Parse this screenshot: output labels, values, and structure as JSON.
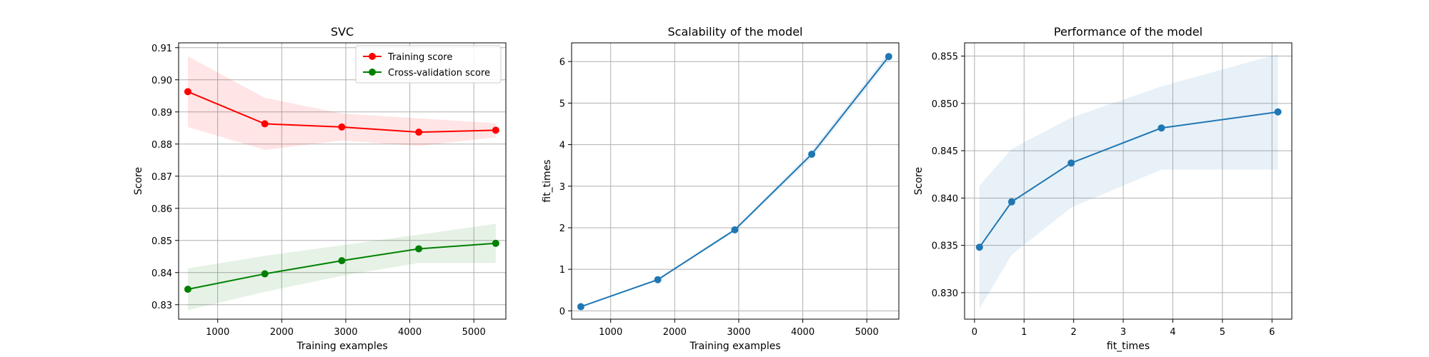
{
  "chart_data": [
    {
      "type": "line",
      "title": "SVC",
      "xlabel": "Training examples",
      "ylabel": "Score",
      "xlim": [
        390,
        5500
      ],
      "ylim": [
        0.8255,
        0.9115
      ],
      "xticks": [
        1000,
        2000,
        3000,
        4000,
        5000
      ],
      "yticks": [
        0.83,
        0.84,
        0.85,
        0.86,
        0.87,
        0.88,
        0.89,
        0.9,
        0.91
      ],
      "ytick_decimals": 2,
      "grid": true,
      "legend": "top-right",
      "series": [
        {
          "name": "Training score",
          "color": "#ff0000",
          "band_color": "#ff0000",
          "x": [
            534,
            1736,
            2938,
            4140,
            5342
          ],
          "y": [
            0.8963,
            0.8863,
            0.8853,
            0.8837,
            0.8843
          ],
          "lower": [
            0.8853,
            0.8782,
            0.8811,
            0.8794,
            0.8821
          ],
          "upper": [
            0.9073,
            0.8944,
            0.8895,
            0.888,
            0.8865
          ]
        },
        {
          "name": "Cross-validation score",
          "color": "#008000",
          "band_color": "#008000",
          "x": [
            534,
            1736,
            2938,
            4140,
            5342
          ],
          "y": [
            0.8348,
            0.8396,
            0.8437,
            0.8474,
            0.8491
          ],
          "lower": [
            0.8283,
            0.834,
            0.839,
            0.843,
            0.843
          ],
          "upper": [
            0.8413,
            0.8452,
            0.8485,
            0.8518,
            0.8552
          ]
        }
      ]
    },
    {
      "type": "line",
      "title": "Scalability of the model",
      "xlabel": "Training examples",
      "ylabel": "fit_times",
      "xlim": [
        390,
        5500
      ],
      "ylim": [
        -0.2,
        6.45
      ],
      "xticks": [
        1000,
        2000,
        3000,
        4000,
        5000
      ],
      "yticks": [
        0,
        1,
        2,
        3,
        4,
        5,
        6
      ],
      "ytick_decimals": 0,
      "grid": true,
      "series": [
        {
          "color": "#1f77b4",
          "band_color": "#1f77b4",
          "x": [
            534,
            1736,
            2938,
            4140,
            5342
          ],
          "y": [
            0.1,
            0.75,
            1.95,
            3.77,
            6.12
          ],
          "lower": [
            0.09,
            0.73,
            1.92,
            3.68,
            6.02
          ],
          "upper": [
            0.11,
            0.77,
            1.98,
            3.86,
            6.22
          ]
        }
      ]
    },
    {
      "type": "line",
      "title": "Performance of the model",
      "xlabel": "fit_times",
      "ylabel": "Score",
      "xlim": [
        -0.2,
        6.4
      ],
      "ylim": [
        0.8272,
        0.8564
      ],
      "xticks": [
        0,
        1,
        2,
        3,
        4,
        5,
        6
      ],
      "yticks": [
        0.83,
        0.835,
        0.84,
        0.845,
        0.85,
        0.855
      ],
      "ytick_decimals": 3,
      "xtick_decimals": 0,
      "grid": true,
      "series": [
        {
          "color": "#1f77b4",
          "band_color": "#1f77b4",
          "x": [
            0.1,
            0.75,
            1.95,
            3.77,
            6.12
          ],
          "y": [
            0.8348,
            0.8396,
            0.8437,
            0.8474,
            0.8491
          ],
          "lower": [
            0.8283,
            0.834,
            0.839,
            0.843,
            0.843
          ],
          "upper": [
            0.8413,
            0.8452,
            0.8485,
            0.8518,
            0.8552
          ]
        }
      ]
    }
  ]
}
